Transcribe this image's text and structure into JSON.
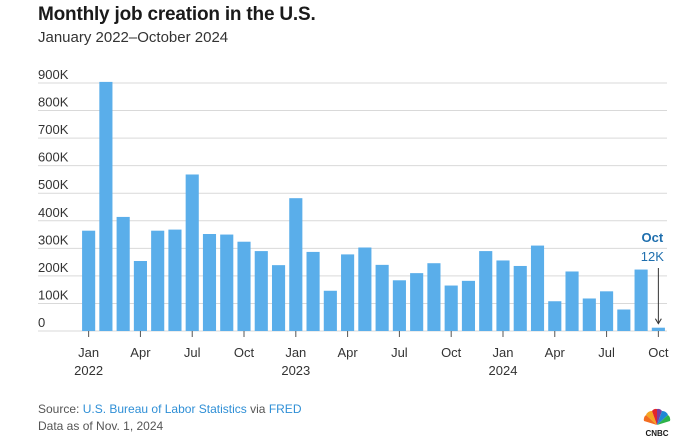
{
  "title": "Monthly job creation in the U.S.",
  "subtitle": "January 2022–October 2024",
  "colors": {
    "bar": "#5aaeea",
    "grid": "#d9d9d9",
    "text": "#333333",
    "accent": "#1f6fae",
    "link": "#2f8fd6"
  },
  "chart_data": {
    "type": "bar",
    "categories": [
      "Jan 2022",
      "Feb 2022",
      "Mar 2022",
      "Apr 2022",
      "May 2022",
      "Jun 2022",
      "Jul 2022",
      "Aug 2022",
      "Sep 2022",
      "Oct 2022",
      "Nov 2022",
      "Dec 2022",
      "Jan 2023",
      "Feb 2023",
      "Mar 2023",
      "Apr 2023",
      "May 2023",
      "Jun 2023",
      "Jul 2023",
      "Aug 2023",
      "Sep 2023",
      "Oct 2023",
      "Nov 2023",
      "Dec 2023",
      "Jan 2024",
      "Feb 2024",
      "Mar 2024",
      "Apr 2024",
      "May 2024",
      "Jun 2024",
      "Jul 2024",
      "Aug 2024",
      "Sep 2024",
      "Oct 2024"
    ],
    "values": [
      364000,
      904000,
      414000,
      254000,
      364000,
      368000,
      568000,
      352000,
      350000,
      324000,
      290000,
      239000,
      482000,
      287000,
      146000,
      278000,
      303000,
      240000,
      184000,
      210000,
      246000,
      165000,
      182000,
      290000,
      256000,
      236000,
      310000,
      108000,
      216000,
      118000,
      144000,
      78000,
      223000,
      12000
    ],
    "ylim": [
      0,
      900000
    ],
    "yticks": [
      0,
      100000,
      200000,
      300000,
      400000,
      500000,
      600000,
      700000,
      800000,
      900000
    ],
    "ytick_labels": [
      "0",
      "100K",
      "200K",
      "300K",
      "400K",
      "500K",
      "600K",
      "700K",
      "800K",
      "900K"
    ],
    "xticks": [
      {
        "index": 0,
        "label": "Jan",
        "year": "2022"
      },
      {
        "index": 3,
        "label": "Apr",
        "year": ""
      },
      {
        "index": 6,
        "label": "Jul",
        "year": ""
      },
      {
        "index": 9,
        "label": "Oct",
        "year": ""
      },
      {
        "index": 12,
        "label": "Jan",
        "year": "2023"
      },
      {
        "index": 15,
        "label": "Apr",
        "year": ""
      },
      {
        "index": 18,
        "label": "Jul",
        "year": ""
      },
      {
        "index": 21,
        "label": "Oct",
        "year": ""
      },
      {
        "index": 24,
        "label": "Jan",
        "year": "2024"
      },
      {
        "index": 27,
        "label": "Apr",
        "year": ""
      },
      {
        "index": 30,
        "label": "Jul",
        "year": ""
      },
      {
        "index": 33,
        "label": "Oct",
        "year": ""
      }
    ],
    "annotation": {
      "index": 33,
      "title": "Oct",
      "value_label": "12K"
    },
    "xlabel": "",
    "ylabel": "",
    "grid": true
  },
  "footer": {
    "source_prefix": "Source: ",
    "source_name": "U.S. Bureau of Labor Statistics",
    "source_via": " via ",
    "source_db": "FRED",
    "data_date": "Data as of Nov. 1, 2024"
  },
  "logo": {
    "text": "CNBC",
    "icon": "peacock-icon"
  }
}
